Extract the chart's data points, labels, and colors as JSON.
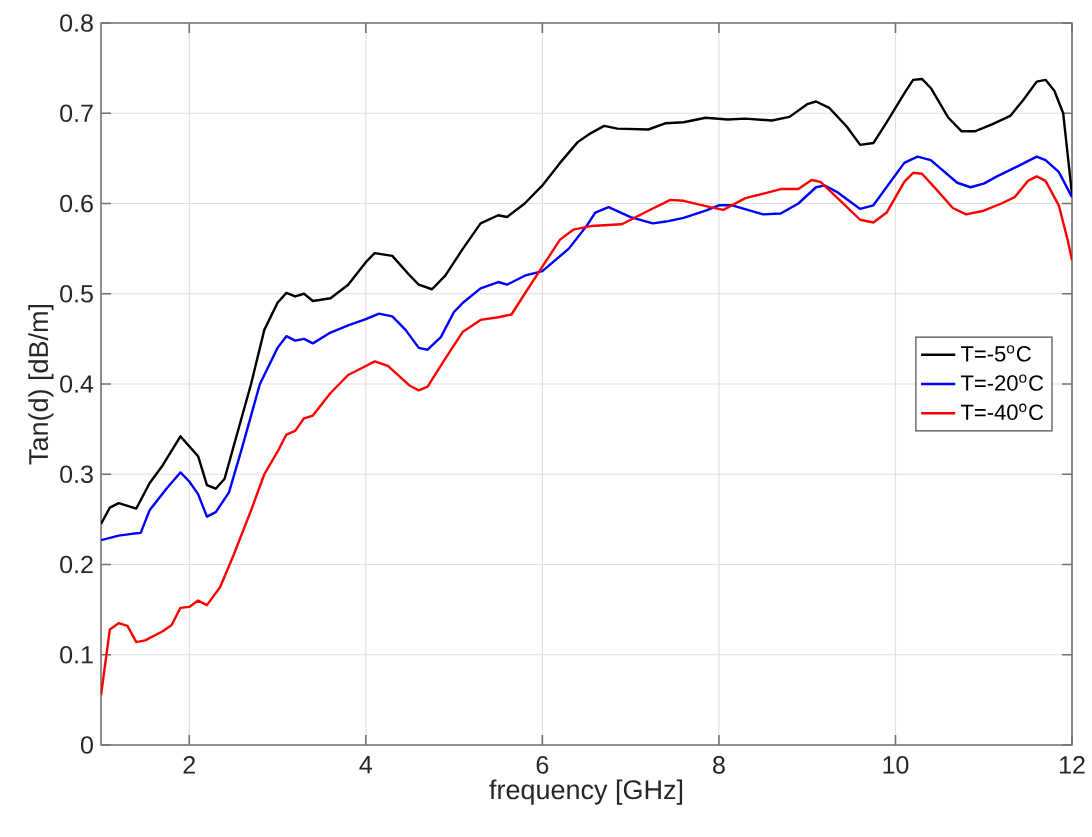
{
  "chart_data": {
    "type": "line",
    "xlabel": "frequency [GHz]",
    "ylabel": "Tan(d) [dB/m]",
    "xlim": [
      1,
      12
    ],
    "xticks": [
      2,
      4,
      6,
      8,
      10,
      12
    ],
    "ylim": [
      0,
      0.8
    ],
    "yticks": [
      0,
      0.1,
      0.2,
      0.3,
      0.4,
      0.5,
      0.6,
      0.7,
      0.8
    ],
    "grid": true,
    "legend": "right",
    "marker": "none",
    "line_style": "solid",
    "series": [
      {
        "name": "T=-5$^{o}$C",
        "color": "#000000",
        "x": [
          1.0,
          1.1,
          1.2,
          1.4,
          1.55,
          1.7,
          1.9,
          2.1,
          2.2,
          2.3,
          2.4,
          2.5,
          2.7,
          2.85,
          3.0,
          3.1,
          3.2,
          3.3,
          3.4,
          3.6,
          3.8,
          4.0,
          4.1,
          4.3,
          4.5,
          4.6,
          4.75,
          4.9,
          5.1,
          5.3,
          5.5,
          5.6,
          5.8,
          6.0,
          6.2,
          6.4,
          6.55,
          6.7,
          6.85,
          7.2,
          7.4,
          7.6,
          7.85,
          8.1,
          8.3,
          8.6,
          8.8,
          9.0,
          9.1,
          9.25,
          9.45,
          9.6,
          9.75,
          9.9,
          10.1,
          10.2,
          10.3,
          10.4,
          10.6,
          10.75,
          10.9,
          11.1,
          11.3,
          11.45,
          11.6,
          11.7,
          11.8,
          11.9,
          12.0
        ],
        "values": [
          0.245,
          0.263,
          0.268,
          0.262,
          0.29,
          0.31,
          0.342,
          0.32,
          0.288,
          0.284,
          0.295,
          0.33,
          0.4,
          0.46,
          0.49,
          0.501,
          0.497,
          0.5,
          0.492,
          0.495,
          0.51,
          0.535,
          0.545,
          0.542,
          0.52,
          0.51,
          0.505,
          0.52,
          0.55,
          0.578,
          0.587,
          0.585,
          0.6,
          0.62,
          0.645,
          0.668,
          0.678,
          0.686,
          0.683,
          0.682,
          0.689,
          0.69,
          0.695,
          0.693,
          0.694,
          0.692,
          0.696,
          0.71,
          0.713,
          0.706,
          0.685,
          0.665,
          0.667,
          0.69,
          0.722,
          0.737,
          0.738,
          0.728,
          0.695,
          0.68,
          0.68,
          0.688,
          0.697,
          0.715,
          0.735,
          0.737,
          0.725,
          0.7,
          0.61
        ]
      },
      {
        "name": "T=-20$^{o}$C",
        "color": "#0000ff",
        "x": [
          1.0,
          1.2,
          1.35,
          1.45,
          1.55,
          1.75,
          1.9,
          2.0,
          2.1,
          2.2,
          2.3,
          2.45,
          2.6,
          2.8,
          2.9,
          3.0,
          3.1,
          3.2,
          3.3,
          3.4,
          3.6,
          3.8,
          4.0,
          4.15,
          4.3,
          4.45,
          4.6,
          4.7,
          4.85,
          5.0,
          5.1,
          5.3,
          5.5,
          5.6,
          5.8,
          6.0,
          6.3,
          6.5,
          6.6,
          6.75,
          7.0,
          7.25,
          7.4,
          7.6,
          7.85,
          8.0,
          8.15,
          8.5,
          8.7,
          8.9,
          9.1,
          9.2,
          9.35,
          9.6,
          9.75,
          9.95,
          10.1,
          10.25,
          10.4,
          10.7,
          10.85,
          11.0,
          11.15,
          11.4,
          11.6,
          11.7,
          11.85,
          12.0
        ],
        "values": [
          0.227,
          0.232,
          0.234,
          0.235,
          0.26,
          0.285,
          0.302,
          0.292,
          0.278,
          0.253,
          0.258,
          0.28,
          0.33,
          0.4,
          0.42,
          0.44,
          0.453,
          0.448,
          0.45,
          0.445,
          0.457,
          0.465,
          0.472,
          0.478,
          0.475,
          0.46,
          0.44,
          0.438,
          0.452,
          0.48,
          0.49,
          0.506,
          0.513,
          0.51,
          0.52,
          0.525,
          0.55,
          0.575,
          0.59,
          0.596,
          0.585,
          0.578,
          0.58,
          0.584,
          0.592,
          0.598,
          0.598,
          0.588,
          0.589,
          0.6,
          0.618,
          0.62,
          0.612,
          0.594,
          0.598,
          0.625,
          0.645,
          0.652,
          0.648,
          0.623,
          0.618,
          0.622,
          0.63,
          0.642,
          0.652,
          0.648,
          0.635,
          0.607
        ]
      },
      {
        "name": "T=-40$^{o}$C",
        "color": "#ff0000",
        "x": [
          1.0,
          1.1,
          1.2,
          1.3,
          1.4,
          1.5,
          1.7,
          1.8,
          1.9,
          2.0,
          2.1,
          2.2,
          2.35,
          2.5,
          2.7,
          2.85,
          3.0,
          3.1,
          3.2,
          3.3,
          3.4,
          3.6,
          3.8,
          4.0,
          4.1,
          4.25,
          4.5,
          4.6,
          4.7,
          4.9,
          5.1,
          5.3,
          5.5,
          5.65,
          5.8,
          6.0,
          6.2,
          6.35,
          6.55,
          6.9,
          7.0,
          7.2,
          7.45,
          7.6,
          7.9,
          8.05,
          8.3,
          8.55,
          8.7,
          8.9,
          9.05,
          9.15,
          9.3,
          9.6,
          9.75,
          9.9,
          10.1,
          10.2,
          10.3,
          10.45,
          10.65,
          10.8,
          11.0,
          11.2,
          11.35,
          11.5,
          11.6,
          11.7,
          11.85,
          11.95,
          12.0
        ],
        "values": [
          0.055,
          0.128,
          0.135,
          0.132,
          0.114,
          0.116,
          0.126,
          0.133,
          0.152,
          0.153,
          0.16,
          0.155,
          0.175,
          0.21,
          0.26,
          0.3,
          0.325,
          0.344,
          0.348,
          0.362,
          0.365,
          0.39,
          0.41,
          0.42,
          0.425,
          0.42,
          0.398,
          0.393,
          0.397,
          0.428,
          0.458,
          0.471,
          0.474,
          0.477,
          0.5,
          0.53,
          0.56,
          0.571,
          0.575,
          0.577,
          0.582,
          0.592,
          0.604,
          0.603,
          0.596,
          0.593,
          0.606,
          0.612,
          0.616,
          0.616,
          0.626,
          0.624,
          0.61,
          0.582,
          0.579,
          0.59,
          0.624,
          0.634,
          0.633,
          0.617,
          0.595,
          0.588,
          0.592,
          0.6,
          0.607,
          0.625,
          0.63,
          0.625,
          0.598,
          0.56,
          0.537
        ]
      }
    ]
  }
}
